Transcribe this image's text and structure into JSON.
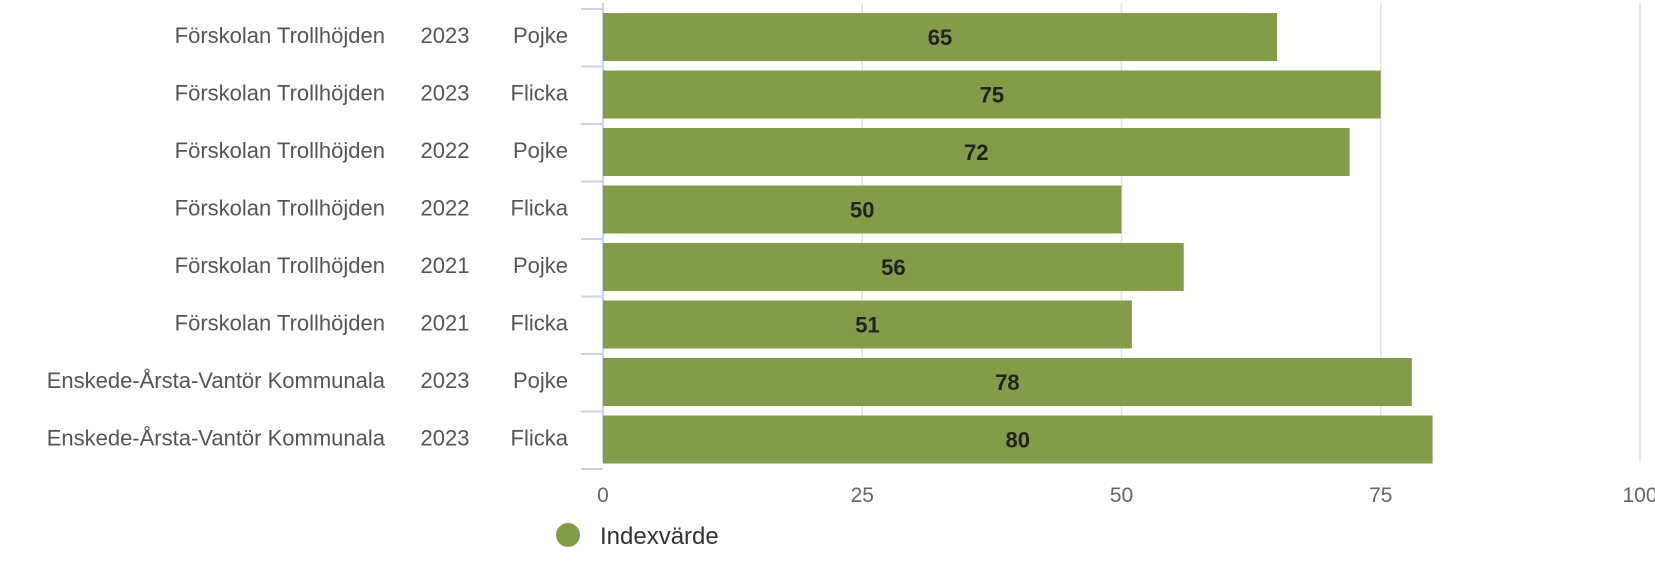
{
  "chart_data": {
    "type": "bar",
    "orientation": "horizontal",
    "categories": [
      [
        "Förskolan Trollhöjden",
        "2023",
        "Pojke"
      ],
      [
        "Förskolan Trollhöjden",
        "2023",
        "Flicka"
      ],
      [
        "Förskolan Trollhöjden",
        "2022",
        "Pojke"
      ],
      [
        "Förskolan Trollhöjden",
        "2022",
        "Flicka"
      ],
      [
        "Förskolan Trollhöjden",
        "2021",
        "Pojke"
      ],
      [
        "Förskolan Trollhöjden",
        "2021",
        "Flicka"
      ],
      [
        "Enskede-Årsta-Vantör Kommunala",
        "2023",
        "Pojke"
      ],
      [
        "Enskede-Årsta-Vantör Kommunala",
        "2023",
        "Flicka"
      ]
    ],
    "series": [
      {
        "name": "Indexvärde",
        "values": [
          65,
          75,
          72,
          50,
          56,
          51,
          78,
          80
        ],
        "color": "#829c47"
      }
    ],
    "xlim": [
      0,
      100
    ],
    "xticks": [
      0,
      25,
      50,
      75,
      100
    ],
    "grid": true,
    "legend": "bottom-center",
    "data_labels": true
  }
}
